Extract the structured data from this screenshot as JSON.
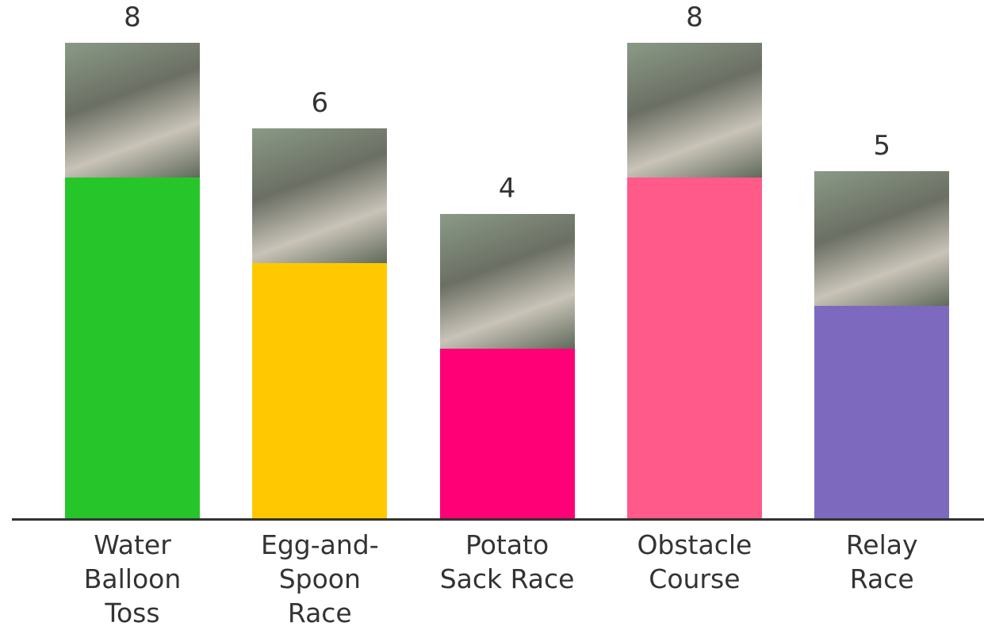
{
  "chart_data": {
    "type": "bar",
    "categories": [
      "Water Balloon Toss",
      "Egg-and-Spoon Race",
      "Potato Sack Race",
      "Obstacle Course",
      "Relay Race"
    ],
    "values": [
      8,
      6,
      4,
      8,
      5
    ],
    "colors": [
      "#26c62a",
      "#ffc800",
      "#ff0076",
      "#ff5a8a",
      "#7d6abf"
    ],
    "ylim": [
      0,
      8
    ]
  }
}
